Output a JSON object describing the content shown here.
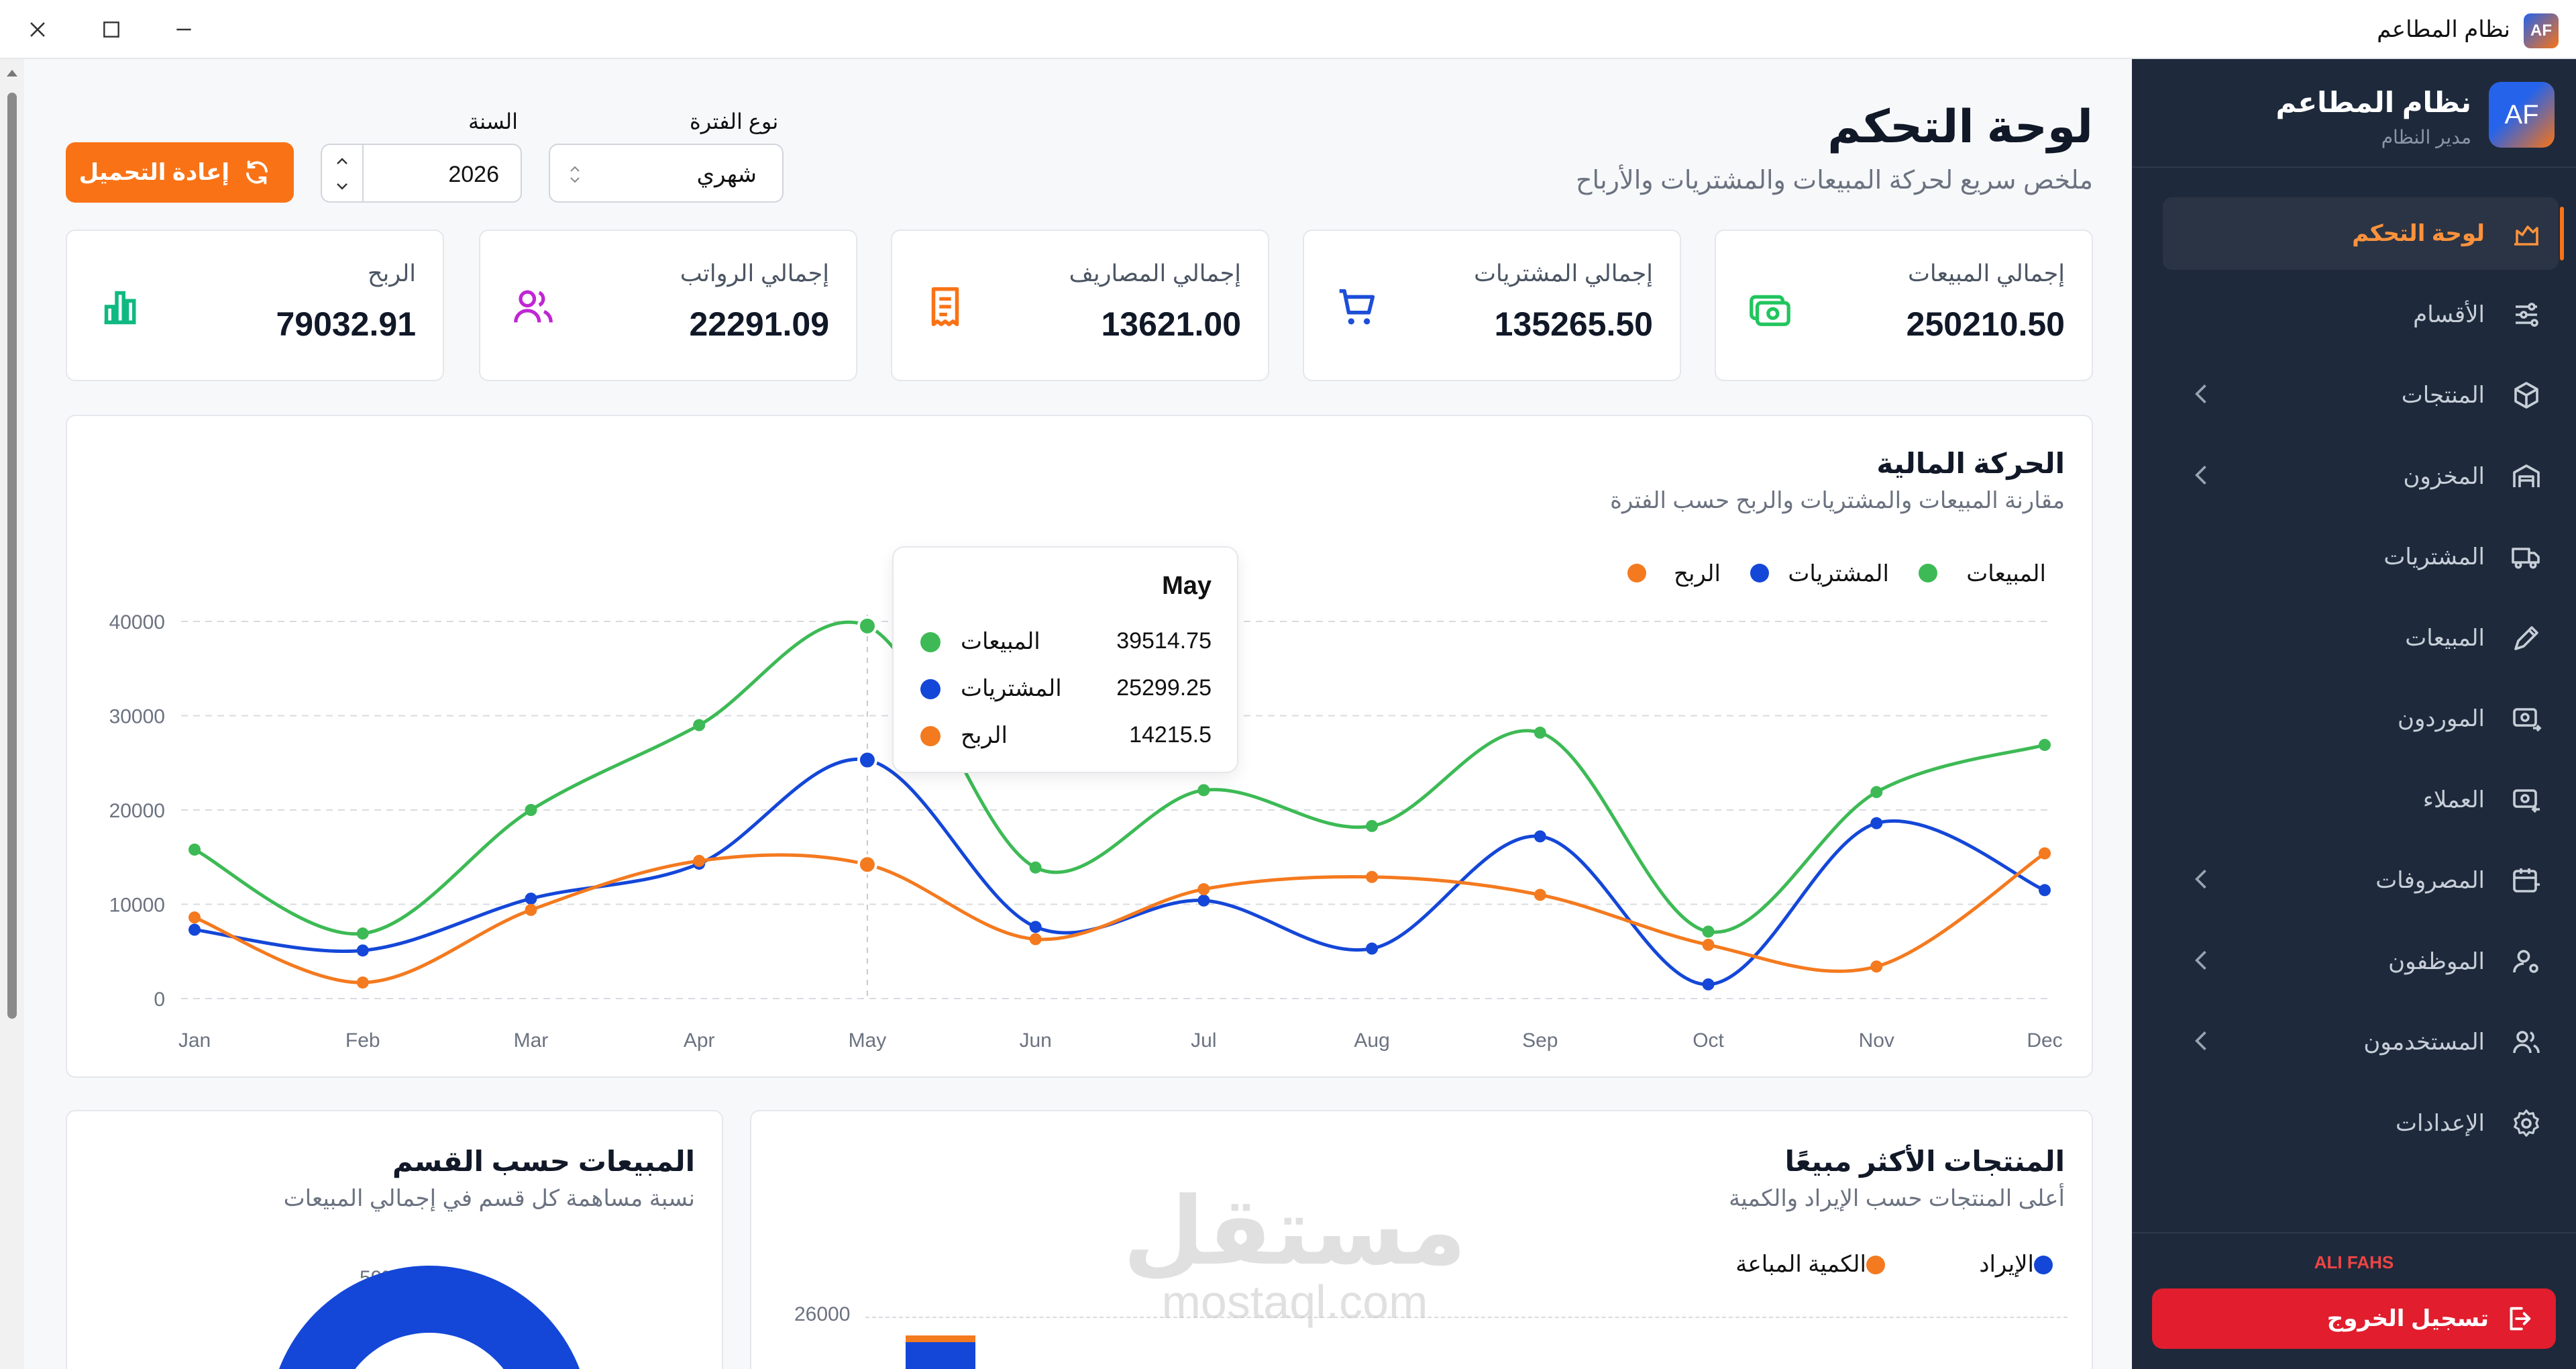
{
  "window": {
    "title": "نظام المطاعم",
    "app_badge": "AF"
  },
  "sidebar": {
    "brand": "نظام المطاعم",
    "role": "مدير النظام",
    "avatar": "AF",
    "items": [
      {
        "label": "لوحة التحكم",
        "icon": "dashboard-chart-icon",
        "active": true,
        "expandable": false
      },
      {
        "label": "الأقسام",
        "icon": "sliders-icon",
        "active": false,
        "expandable": false
      },
      {
        "label": "المنتجات",
        "icon": "box-icon",
        "active": false,
        "expandable": true
      },
      {
        "label": "المخزون",
        "icon": "warehouse-icon",
        "active": false,
        "expandable": true
      },
      {
        "label": "المشتريات",
        "icon": "truck-icon",
        "active": false,
        "expandable": false
      },
      {
        "label": "المبيعات",
        "icon": "tag-icon",
        "active": false,
        "expandable": false
      },
      {
        "label": "الموردون",
        "icon": "supplier-icon",
        "active": false,
        "expandable": false
      },
      {
        "label": "العملاء",
        "icon": "customer-icon",
        "active": false,
        "expandable": false
      },
      {
        "label": "المصروفات",
        "icon": "calendar-money-icon",
        "active": false,
        "expandable": true
      },
      {
        "label": "الموظفون",
        "icon": "user-cog-icon",
        "active": false,
        "expandable": true
      },
      {
        "label": "المستخدمون",
        "icon": "users-icon",
        "active": false,
        "expandable": true
      },
      {
        "label": "الإعدادات",
        "icon": "gear-icon",
        "active": false,
        "expandable": false
      }
    ],
    "username": "ALI FAHS",
    "logout_label": "تسجيل الخروج"
  },
  "header": {
    "title": "لوحة التحكم",
    "subtitle": "ملخص سريع لحركة المبيعات والمشتريات والأرباح",
    "period_label": "نوع الفترة",
    "period_value": "شهري",
    "year_label": "السنة",
    "year_value": "2026",
    "reload_label": "إعادة التحميل"
  },
  "stats": [
    {
      "label": "إجمالي المبيعات",
      "value": "250210.50",
      "icon": "money-icon",
      "color": "#22c55e"
    },
    {
      "label": "إجمالي المشتريات",
      "value": "135265.50",
      "icon": "cart-icon",
      "color": "#1d4ed8"
    },
    {
      "label": "إجمالي المصاريف",
      "value": "13621.00",
      "icon": "receipt-icon",
      "color": "#f97316"
    },
    {
      "label": "إجمالي الرواتب",
      "value": "22291.09",
      "icon": "users-icon",
      "color": "#c026d3"
    },
    {
      "label": "الربح",
      "value": "79032.91",
      "icon": "bar-chart-icon",
      "color": "#10b981"
    }
  ],
  "chart_data": [
    {
      "type": "line",
      "title": "الحركة المالية",
      "subtitle": "مقارنة المبيعات والمشتريات والربح حسب الفترة",
      "x": [
        "Jan",
        "Feb",
        "Mar",
        "Apr",
        "May",
        "Jun",
        "Jul",
        "Aug",
        "Sep",
        "Oct",
        "Nov",
        "Dec"
      ],
      "ylim": [
        0,
        40000
      ],
      "yticks": [
        0,
        10000,
        20000,
        30000,
        40000
      ],
      "grid": true,
      "legend_position": "top-right",
      "series": [
        {
          "name": "المبيعات",
          "color": "#3dba55",
          "values": [
            15800,
            6900,
            20000,
            29000,
            39514.75,
            13900,
            22100,
            18300,
            28200,
            7100,
            21900,
            26900
          ]
        },
        {
          "name": "المشتريات",
          "color": "#1447d8",
          "values": [
            7300,
            5100,
            10600,
            14300,
            25299.25,
            7600,
            10400,
            5300,
            17200,
            1500,
            18600,
            11500
          ]
        },
        {
          "name": "الربح",
          "color": "#f47a1f",
          "values": [
            8600,
            1700,
            9400,
            14600,
            14215.5,
            6300,
            11600,
            12900,
            11000,
            5700,
            3400,
            15400
          ]
        }
      ],
      "tooltip": {
        "title": "May",
        "rows": [
          {
            "label": "المبيعات",
            "value": "39514.75",
            "color": "#3dba55"
          },
          {
            "label": "المشتريات",
            "value": "25299.25",
            "color": "#1447d8"
          },
          {
            "label": "الربح",
            "value": "14215.5",
            "color": "#f47a1f"
          }
        ]
      }
    },
    {
      "type": "bar",
      "title": "المنتجات الأكثر مبيعًا",
      "subtitle": "أعلى المنتجات حسب الإيراد والكمية",
      "series": [
        {
          "name": "الإيراد",
          "color": "#1447d8"
        },
        {
          "name": "الكمية المباعة",
          "color": "#f47a1f"
        }
      ],
      "visible_ytick": "26000",
      "legend_position": "top-right"
    },
    {
      "type": "pie",
      "title": "المبيعات حسب القسم",
      "subtitle": "نسبة مساهمة كل قسم في إجمالي المبيعات",
      "slices": [
        {
          "label": "59%",
          "value": 59,
          "color": "#1447d8"
        }
      ]
    }
  ],
  "watermark": {
    "arabic": "مستقل",
    "latin": "mostaql.com"
  }
}
